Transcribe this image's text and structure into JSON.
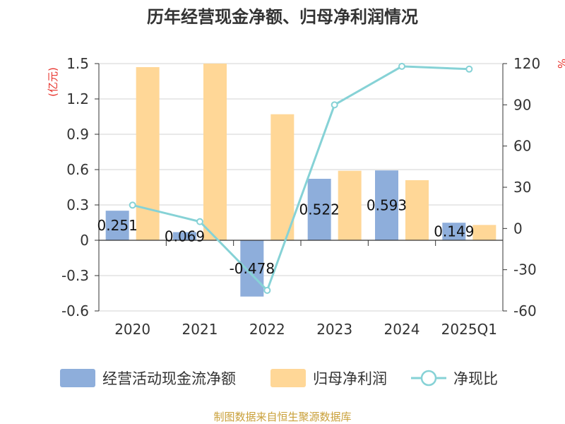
{
  "chart_data": {
    "type": "bar+line",
    "title": "历年经营现金净额、归母净利润情况",
    "categories": [
      "2020",
      "2021",
      "2022",
      "2023",
      "2024",
      "2025Q1"
    ],
    "series": [
      {
        "name": "经营活动现金流净额",
        "type": "bar",
        "axis": "left",
        "color": "#8eaedb",
        "values": [
          0.251,
          0.069,
          -0.478,
          0.522,
          0.593,
          0.149
        ],
        "labels": [
          "0.251",
          "0.069",
          "-0.478",
          "0.522",
          "0.593",
          "0.149"
        ]
      },
      {
        "name": "归母净利润",
        "type": "bar",
        "axis": "left",
        "color": "#ffd797",
        "values": [
          1.47,
          1.5,
          1.07,
          0.59,
          0.51,
          0.13
        ]
      },
      {
        "name": "净现比",
        "type": "line",
        "axis": "right",
        "color": "#86d2d6",
        "values": [
          17,
          5,
          -45,
          90,
          118,
          116
        ]
      }
    ],
    "left_axis": {
      "unit": "(亿元)",
      "ylim": [
        -0.6,
        1.5
      ],
      "ticks": [
        "1.5",
        "1.2",
        "0.9",
        "0.6",
        "0.3",
        "0",
        "-0.3",
        "-0.6"
      ]
    },
    "right_axis": {
      "unit": "%",
      "ylim": [
        -60,
        120
      ],
      "ticks": [
        "120",
        "90",
        "60",
        "30",
        "0",
        "-30",
        "-60"
      ]
    },
    "grid": true,
    "legend_position": "bottom"
  },
  "source": "制图数据来自恒生聚源数据库"
}
